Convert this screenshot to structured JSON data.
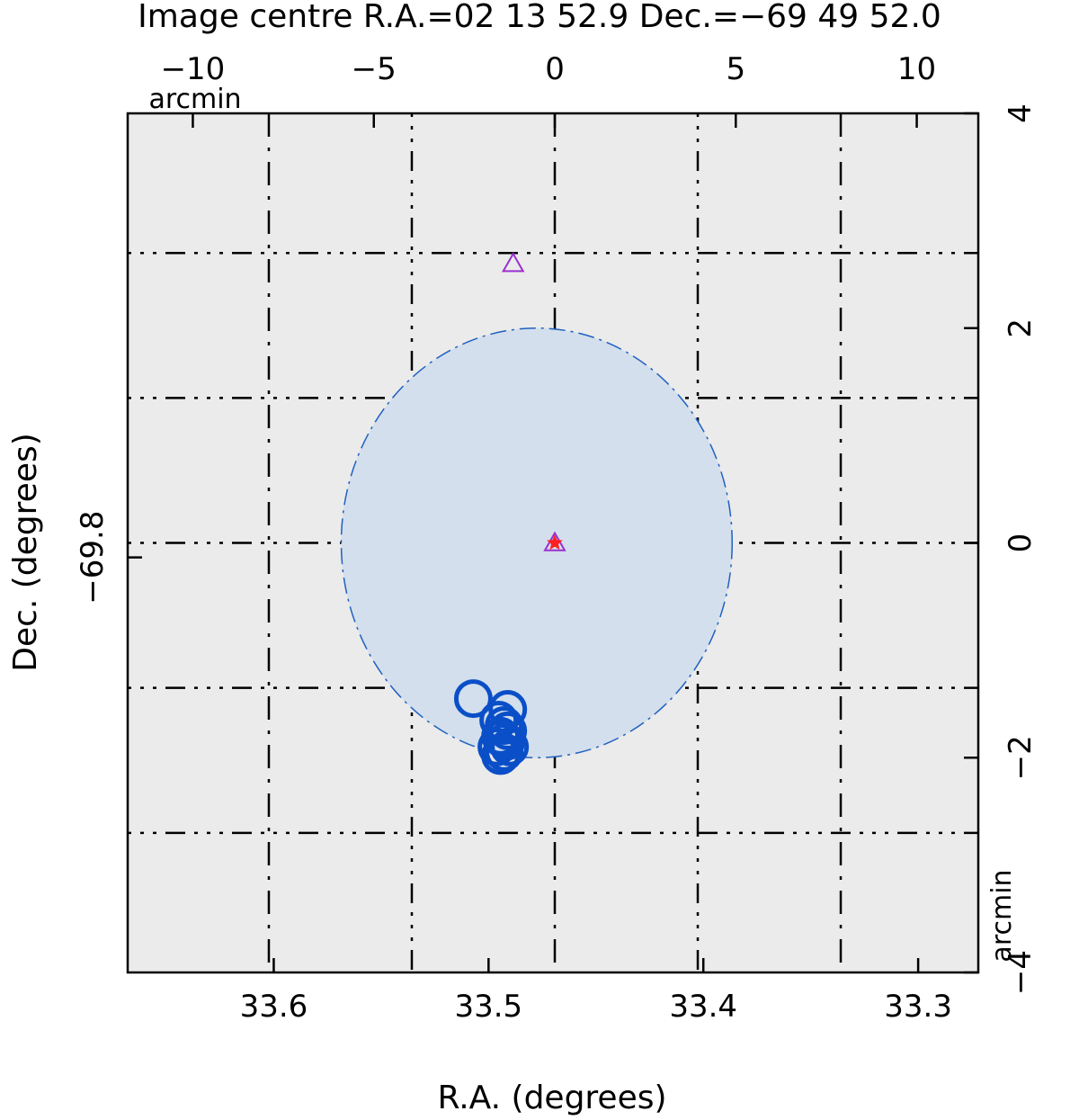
{
  "chart_data": {
    "type": "scatter",
    "title": "Image centre R.A.=02 13 52.9 Dec.=−69 49 52.0",
    "xlabel": "R.A. (degrees)",
    "ylabel": "Dec. (degrees)",
    "top_axis_unit": "arcmin",
    "right_axis_unit": "arcmin",
    "xlim": [
      33.668,
      33.272
    ],
    "ylim": [
      -69.8644,
      -69.7311
    ],
    "x_ticks": [
      {
        "value": 33.6,
        "label": "33.6"
      },
      {
        "value": 33.5,
        "label": "33.5"
      },
      {
        "value": 33.4,
        "label": "33.4"
      },
      {
        "value": 33.3,
        "label": "33.3"
      }
    ],
    "y_ticks": [
      {
        "value": -69.8,
        "label": "−69.8"
      }
    ],
    "top_ticks": [
      {
        "value": -10,
        "label": "−10"
      },
      {
        "value": -5,
        "label": "−5"
      },
      {
        "value": 0,
        "label": "0"
      },
      {
        "value": 5,
        "label": "5"
      },
      {
        "value": 10,
        "label": "10"
      }
    ],
    "right_ticks": [
      {
        "value": 4,
        "label": "4"
      },
      {
        "value": 2,
        "label": "2"
      },
      {
        "value": 0,
        "label": "0"
      },
      {
        "value": -2,
        "label": "−2"
      },
      {
        "value": -4,
        "label": "−4"
      }
    ],
    "offset_limits": {
      "x_arcmin": [
        -11.8,
        11.7
      ],
      "y_arcmin": [
        -4.0,
        4.0
      ]
    },
    "grid": {
      "ra_lines_arcmin": [
        -7.9,
        0.0,
        7.9
      ],
      "ra_dotted_lines_arcmin": [
        -3.95,
        3.95
      ],
      "dec_lines_arcmin": [
        2.7,
        1.35,
        0.0,
        -1.35,
        -2.7
      ]
    },
    "error_ellipse": {
      "center_arcmin": [
        -0.5,
        0.0
      ],
      "semi_axes_arcmin": [
        5.4,
        2.0
      ],
      "fill": "#d3dfec",
      "stroke": "#2060c0"
    },
    "series": [
      {
        "marker": "triangle",
        "color": "#9b30d0",
        "points_arcmin": [
          [
            -1.15,
            2.6
          ],
          [
            0.0,
            0.0
          ]
        ]
      },
      {
        "marker": "star",
        "color": "#ff2020",
        "points_arcmin": [
          [
            0.0,
            0.0
          ]
        ]
      },
      {
        "marker": "circle",
        "color": "#0a4fc8",
        "points_arcmin": [
          [
            -2.25,
            -1.45
          ],
          [
            -1.3,
            -1.55
          ],
          [
            -1.4,
            -1.7
          ],
          [
            -1.55,
            -1.65
          ],
          [
            -1.3,
            -1.75
          ],
          [
            -1.35,
            -1.85
          ],
          [
            -1.5,
            -1.8
          ],
          [
            -1.4,
            -1.95
          ],
          [
            -1.25,
            -1.9
          ],
          [
            -1.6,
            -1.9
          ],
          [
            -1.5,
            -1.98
          ],
          [
            -1.45,
            -1.82
          ]
        ]
      }
    ],
    "colors": {
      "plot_background": "#ebebeb",
      "grid": "#000000",
      "ellipse_fill": "#d3dfec",
      "circles": "#0a4fc8",
      "triangles": "#9b30d0",
      "star": "#ff2020"
    }
  }
}
